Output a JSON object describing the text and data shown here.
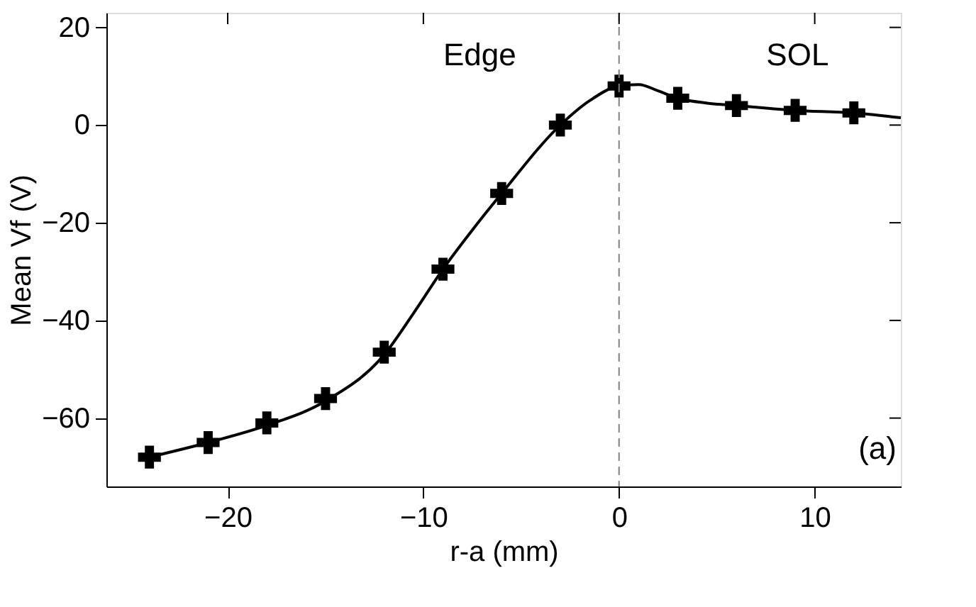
{
  "chart_data": {
    "type": "scatter",
    "xlabel": "r-a (mm)",
    "ylabel": "Mean Vf (V)",
    "xlim": [
      -26.2,
      14.4
    ],
    "ylim": [
      -74,
      23
    ],
    "xticks": [
      -20,
      -10,
      0,
      10
    ],
    "yticks": [
      -60,
      -40,
      -20,
      0,
      20
    ],
    "grid": false,
    "marker": "cross",
    "x": [
      -24,
      -21,
      -18,
      -15,
      -12,
      -9,
      -6,
      -3,
      0,
      3,
      6,
      9,
      12
    ],
    "series": [
      {
        "color": "#000000",
        "values": [
          -68,
          -65,
          -61,
          -56,
          -46.5,
          -29.5,
          -14,
          0,
          8,
          5.5,
          4,
          3,
          2.5
        ]
      },
      {
        "type": "line",
        "color": "#000000",
        "line_style": "solid",
        "marker": "none",
        "x": [
          -24,
          -21,
          -18,
          -15,
          -12,
          -10.5,
          -9,
          -7.5,
          -6,
          -3,
          -1.5,
          0,
          1,
          2,
          3,
          4.5,
          6,
          9,
          12,
          14.4
        ],
        "values": [
          -68,
          -65,
          -61.5,
          -56.5,
          -47,
          -38.5,
          -29.5,
          -21.5,
          -14,
          0,
          5,
          8,
          8.3,
          7,
          5.5,
          4.5,
          4,
          3,
          2.5,
          1.5
        ]
      }
    ],
    "ref_lines": [
      {
        "axis": "x",
        "value": 0,
        "color": "#808080",
        "line_style": "dashed"
      }
    ],
    "annotations": [
      "Edge",
      "SOL",
      "(a)"
    ]
  }
}
